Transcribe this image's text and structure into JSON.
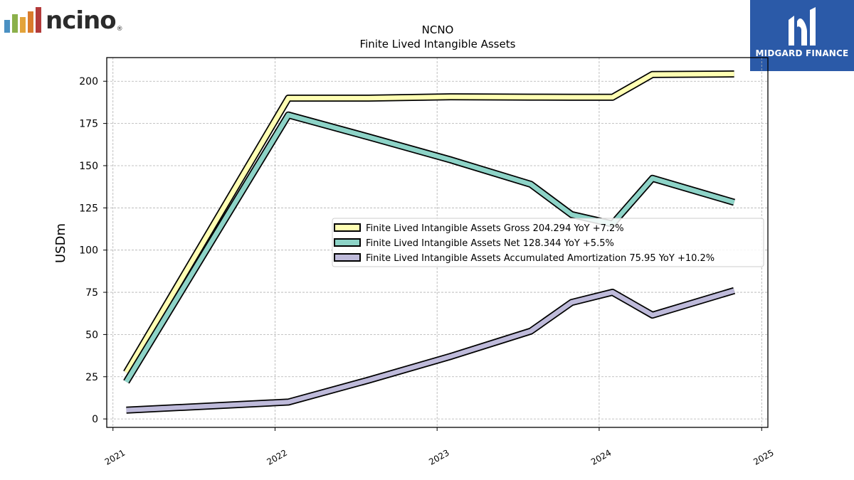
{
  "logos": {
    "left_wordmark": "ncino",
    "left_bar_colors": [
      "#4a90c2",
      "#8bb04a",
      "#e3a33a",
      "#d97b2c",
      "#b33a3a"
    ],
    "right_brand": "MIDGARD FINANCE",
    "right_bg": "#2b5aa8"
  },
  "chart_data": {
    "type": "line",
    "title": "NCNO",
    "subtitle": "Finite Lived Intangible Assets",
    "ylabel": "USDm",
    "xlabel": "",
    "ylim": [
      -5,
      214
    ],
    "xlim": [
      "2020-12-18",
      "2025-01-15"
    ],
    "yticks": [
      0,
      25,
      50,
      75,
      100,
      125,
      150,
      175,
      200
    ],
    "xticks": [
      "2021",
      "2022",
      "2023",
      "2024",
      "2025"
    ],
    "grid": true,
    "legend_position": "center-right",
    "series": [
      {
        "name": "Finite Lived Intangible Assets Gross  204.294 YoY +7.2%",
        "color": "#ffffb3",
        "x": [
          "2021-01-31",
          "2022-01-31",
          "2022-07-31",
          "2023-01-31",
          "2023-07-31",
          "2023-10-31",
          "2024-01-31",
          "2024-04-30",
          "2024-10-31"
        ],
        "values": [
          27.5,
          190.0,
          190.0,
          190.8,
          190.6,
          190.5,
          190.5,
          204.0,
          204.3
        ]
      },
      {
        "name": "Finite Lived Intangible Assets Net  128.344 YoY +5.5%",
        "color": "#8dd3c7",
        "x": [
          "2021-01-31",
          "2022-01-31",
          "2022-07-31",
          "2023-01-31",
          "2023-07-31",
          "2023-10-31",
          "2024-01-31",
          "2024-04-30",
          "2024-10-31"
        ],
        "values": [
          22.0,
          180.0,
          167.0,
          153.5,
          139.0,
          121.0,
          115.5,
          142.5,
          128.3
        ]
      },
      {
        "name": "Finite Lived Intangible Assets Accumulated Amortization  75.95 YoY +10.2%",
        "color": "#bebada",
        "x": [
          "2021-01-31",
          "2022-01-31",
          "2022-07-31",
          "2023-01-31",
          "2023-07-31",
          "2023-10-31",
          "2024-01-31",
          "2024-04-30",
          "2024-10-31"
        ],
        "values": [
          5.2,
          10.0,
          23.0,
          37.0,
          52.0,
          69.0,
          75.0,
          61.5,
          76.0
        ]
      }
    ]
  }
}
